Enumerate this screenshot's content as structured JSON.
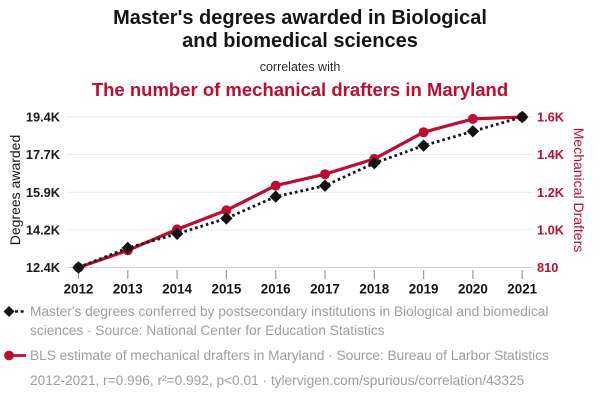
{
  "header": {
    "title_lines": [
      "Master's degrees awarded in Biological",
      "and biomedical sciences"
    ],
    "connector": "correlates with",
    "subtitle": "The number of mechanical drafters in Maryland"
  },
  "colors": {
    "accent_red": "#bd0d30",
    "series_black": "#141414",
    "grid": "#eaeaea",
    "axis_line": "#d0d0d0",
    "tick_mark": "#9b9b9b",
    "legend_text": "#9d9d9d"
  },
  "chart_data": {
    "type": "line",
    "title": "Master's degrees awarded in Biological and biomedical sciences",
    "subtitle": "The number of mechanical drafters in Maryland",
    "x": [
      2012,
      2013,
      2014,
      2015,
      2016,
      2017,
      2018,
      2019,
      2020,
      2021
    ],
    "x_tick_labels": [
      "2012",
      "2013",
      "2014",
      "2015",
      "2016",
      "2017",
      "2018",
      "2019",
      "2020",
      "2021"
    ],
    "series": [
      {
        "key": "degrees",
        "name": "Master's degrees conferred by postsecondary institutions in Biological and biomedical sciences",
        "axis": "left",
        "color": "#141414",
        "style": "dashed",
        "marker": "diamond",
        "values": [
          12423,
          13335,
          13990,
          14706,
          15716,
          16226,
          17272,
          18088,
          18751,
          19417
        ]
      },
      {
        "key": "drafters",
        "name": "BLS estimate of mechanical drafters in Maryland",
        "axis": "right",
        "color": "#bd0d30",
        "style": "solid",
        "marker": "circle",
        "values": [
          810,
          900,
          1010,
          1110,
          1240,
          1300,
          1380,
          1520,
          1590,
          1600
        ]
      }
    ],
    "left_axis": {
      "label": "Degrees awarded",
      "min": 12423,
      "max": 19417,
      "tick_labels": [
        "12.4K",
        "14.2K",
        "15.9K",
        "17.7K",
        "19.4K"
      ]
    },
    "right_axis": {
      "label": "Mechanical Drafters",
      "min": 810,
      "max": 1600,
      "tick_labels": [
        "810",
        "1.0K",
        "1.2K",
        "1.4K",
        "1.6K"
      ]
    },
    "grid": true,
    "legend_position": "bottom"
  },
  "legend": {
    "items": [
      {
        "series": "degrees",
        "text": "Master's degrees conferred by postsecondary institutions in Biological and biomedical sciences · Source: National Center for Education Statistics"
      },
      {
        "series": "drafters",
        "text": "BLS estimate of mechanical drafters in Maryland · Source: Bureau of Larbor Statistics"
      }
    ],
    "footer": "2012-2021, r=0.996, r²=0.992, p<0.01 · tylervigen.com/spurious/correlation/43325"
  }
}
